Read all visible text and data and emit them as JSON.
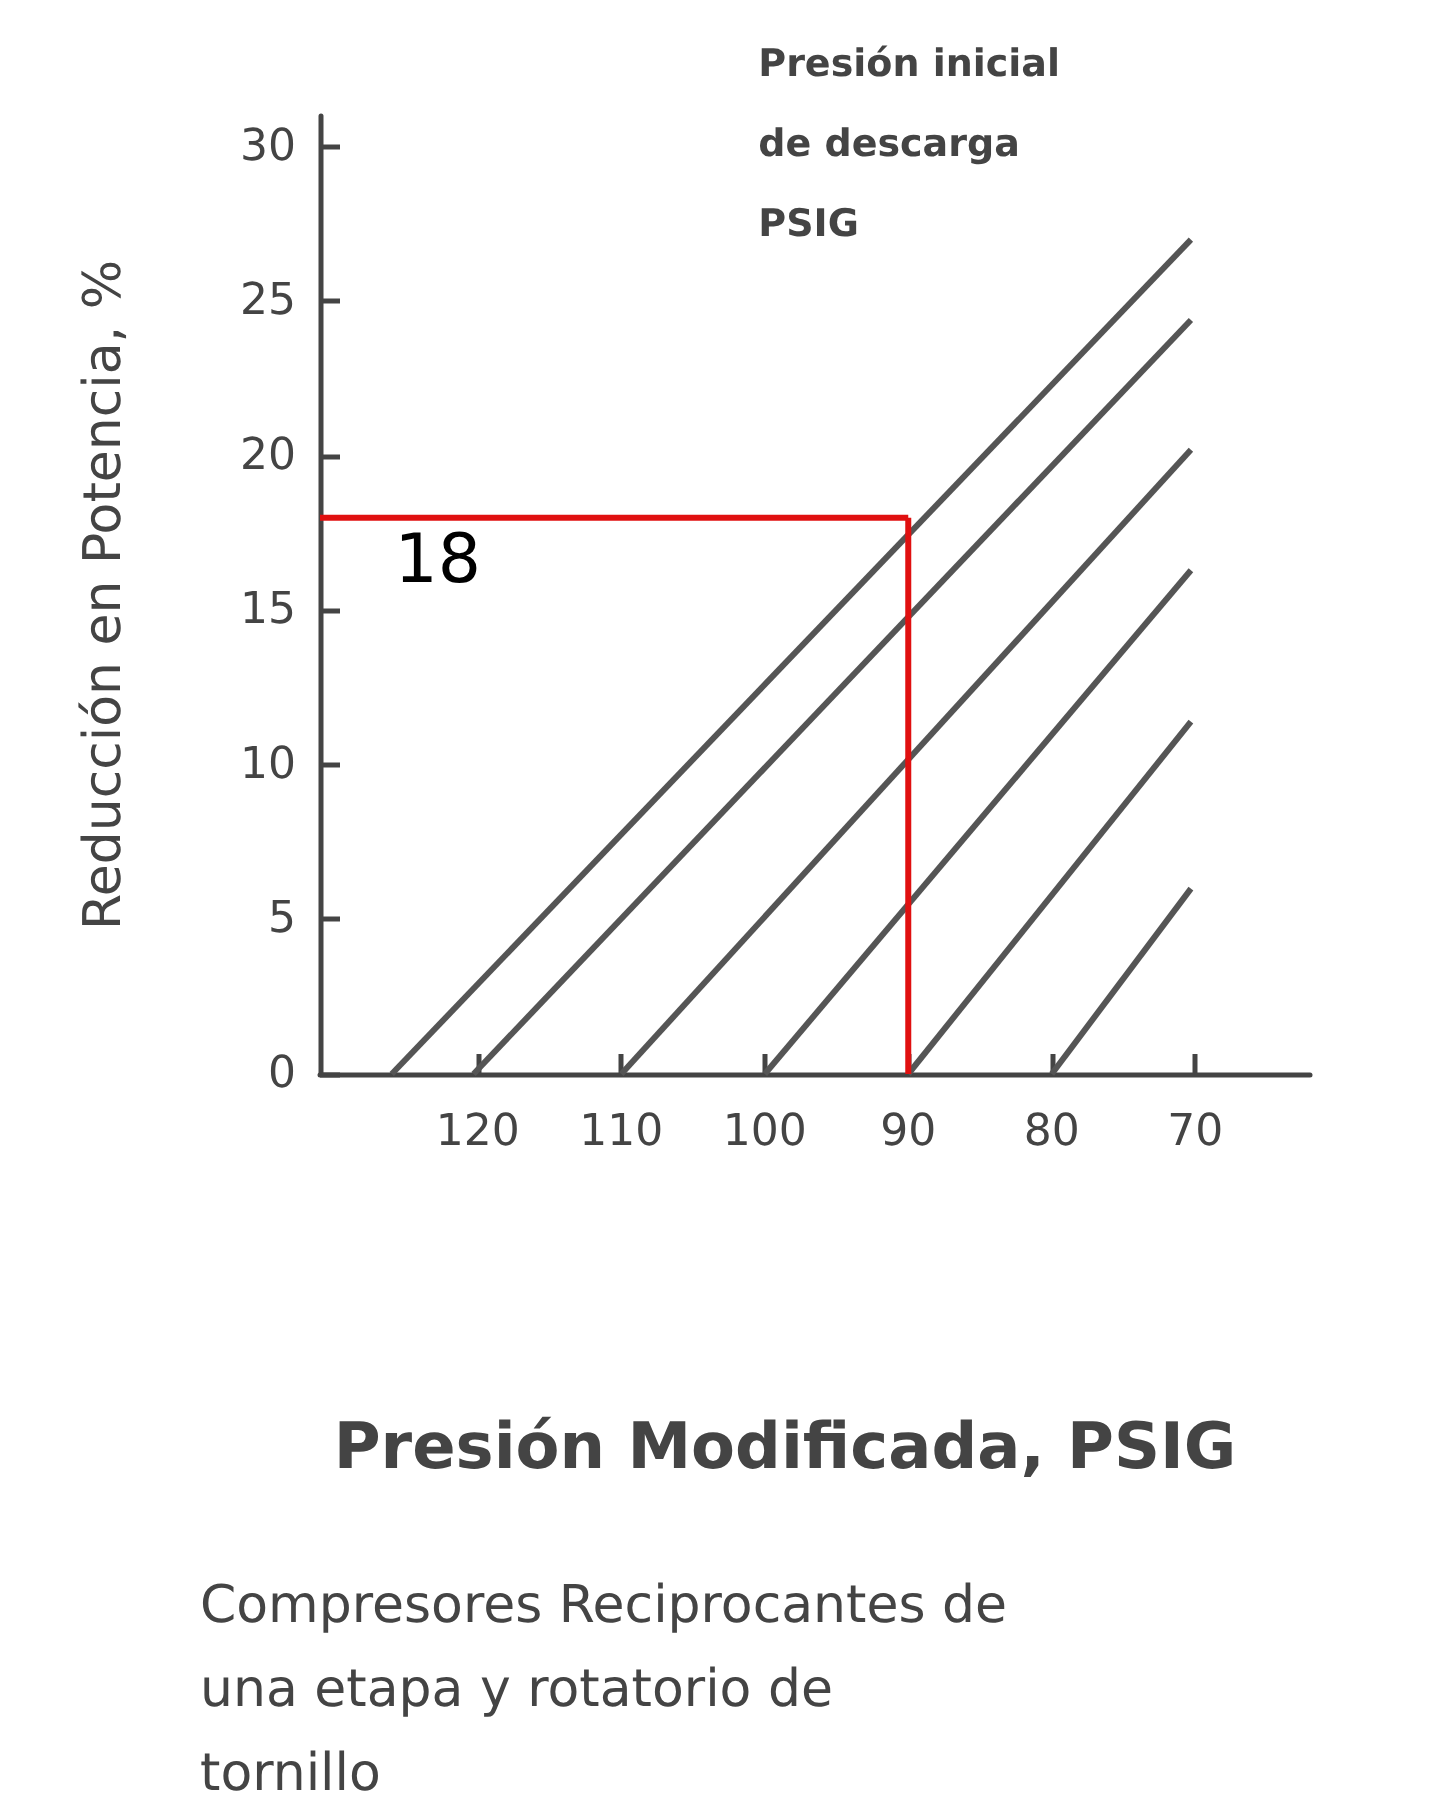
{
  "chart_data": {
    "type": "line",
    "xlabel": "Presión Modificada, PSIG",
    "ylabel": "Reducción en Potencia, %",
    "annotations": [
      "Presión inicial\nde descarga\nPSIG",
      "Compresores Reciprocantes de\nuna etapa y rotatorio de\ntornillo"
    ],
    "series": [
      {
        "color": "#555555",
        "x": [
          126,
          70.3
        ],
        "values": [
          0,
          27
        ]
      },
      {
        "color": "#555555",
        "x": [
          120.3,
          70.3
        ],
        "values": [
          0,
          24.4
        ]
      },
      {
        "color": "#555555",
        "x": [
          110,
          70.3
        ],
        "values": [
          0,
          20.2
        ]
      },
      {
        "color": "#555555",
        "x": [
          100,
          70.3
        ],
        "values": [
          0,
          16.3
        ]
      },
      {
        "color": "#555555",
        "x": [
          90,
          70.3
        ],
        "values": [
          0,
          11.4
        ]
      },
      {
        "color": "#555555",
        "x": [
          80,
          70.3
        ],
        "values": [
          0,
          6
        ]
      }
    ],
    "xlim": [
      131,
      62
    ],
    "xticks": [
      120,
      110,
      100,
      90,
      80,
      70
    ],
    "ylim": [
      0,
      31
    ],
    "yticks": [
      0,
      5,
      10,
      15,
      20,
      25,
      30
    ],
    "ref_lines": [
      {
        "axis": "y",
        "value": 18,
        "label": "18",
        "color": "#e01010"
      },
      {
        "axis": "x",
        "value": 90,
        "color": "#e01010"
      }
    ],
    "grid": false,
    "marker": "none",
    "line_style": "solid"
  }
}
